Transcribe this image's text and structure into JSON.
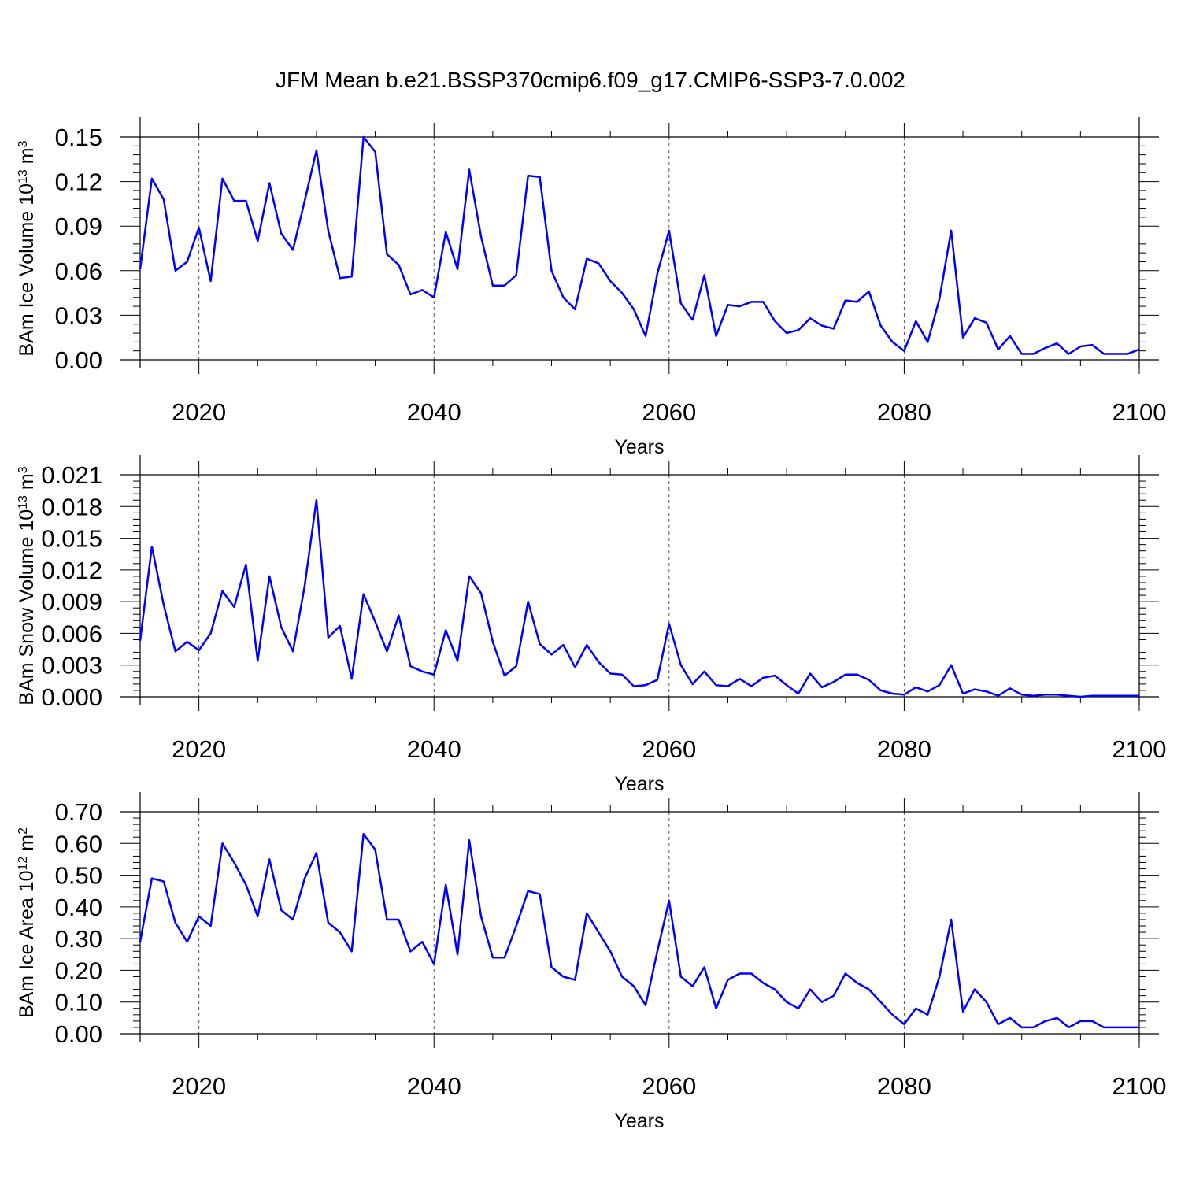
{
  "figure": {
    "title": "JFM Mean b.e21.BSSP370cmip6.f09_g17.CMIP6-SSP3-7.0.002"
  },
  "chart_data": [
    {
      "type": "line",
      "ylabel_main": "BAm Ice Volume 10",
      "ylabel_exp": "13",
      "ylabel_unit": " m",
      "ylabel_unit_exp": "3",
      "xlabel": "Years",
      "xlim": [
        2015,
        2100
      ],
      "ylim": [
        0,
        0.15
      ],
      "yticks": [
        0,
        0.03,
        0.06,
        0.09,
        0.12,
        0.15
      ],
      "ytick_labels": [
        "0.00",
        "0.03",
        "0.06",
        "0.09",
        "0.12",
        "0.15"
      ],
      "xticks": [
        2020,
        2040,
        2060,
        2080,
        2100
      ],
      "xtick_labels": [
        "2020",
        "2040",
        "2060",
        "2080",
        "2100"
      ],
      "grid": "vertical dashed at major x ticks",
      "line_color": "#0000ff",
      "x": [
        2015,
        2016,
        2017,
        2018,
        2019,
        2020,
        2021,
        2022,
        2023,
        2024,
        2025,
        2026,
        2027,
        2028,
        2029,
        2030,
        2031,
        2032,
        2033,
        2034,
        2035,
        2036,
        2037,
        2038,
        2039,
        2040,
        2041,
        2042,
        2043,
        2044,
        2045,
        2046,
        2047,
        2048,
        2049,
        2050,
        2051,
        2052,
        2053,
        2054,
        2055,
        2056,
        2057,
        2058,
        2059,
        2060,
        2061,
        2062,
        2063,
        2064,
        2065,
        2066,
        2067,
        2068,
        2069,
        2070,
        2071,
        2072,
        2073,
        2074,
        2075,
        2076,
        2077,
        2078,
        2079,
        2080,
        2081,
        2082,
        2083,
        2084,
        2085,
        2086,
        2087,
        2088,
        2089,
        2090,
        2091,
        2092,
        2093,
        2094,
        2095,
        2096,
        2097,
        2098,
        2099,
        2100
      ],
      "y": [
        0.061,
        0.122,
        0.108,
        0.06,
        0.066,
        0.089,
        0.053,
        0.122,
        0.107,
        0.107,
        0.08,
        0.119,
        0.085,
        0.074,
        0.107,
        0.141,
        0.087,
        0.055,
        0.056,
        0.15,
        0.14,
        0.071,
        0.064,
        0.044,
        0.047,
        0.042,
        0.086,
        0.061,
        0.128,
        0.083,
        0.05,
        0.05,
        0.057,
        0.124,
        0.123,
        0.06,
        0.042,
        0.034,
        0.068,
        0.065,
        0.053,
        0.045,
        0.034,
        0.016,
        0.058,
        0.087,
        0.038,
        0.027,
        0.057,
        0.016,
        0.037,
        0.036,
        0.039,
        0.039,
        0.026,
        0.018,
        0.02,
        0.028,
        0.023,
        0.021,
        0.04,
        0.039,
        0.046,
        0.023,
        0.012,
        0.006,
        0.026,
        0.012,
        0.041,
        0.087,
        0.015,
        0.028,
        0.025,
        0.007,
        0.016,
        0.004,
        0.004,
        0.008,
        0.011,
        0.004,
        0.009,
        0.01,
        0.004,
        0.004,
        0.004,
        0.007
      ]
    },
    {
      "type": "line",
      "ylabel_main": "BAm Snow Volume 10",
      "ylabel_exp": "13",
      "ylabel_unit": " m",
      "ylabel_unit_exp": "3",
      "xlabel": "Years",
      "xlim": [
        2015,
        2100
      ],
      "ylim": [
        0,
        0.021
      ],
      "yticks": [
        0,
        0.003,
        0.006,
        0.009,
        0.012,
        0.015,
        0.018,
        0.021
      ],
      "ytick_labels": [
        "0.000",
        "0.003",
        "0.006",
        "0.009",
        "0.012",
        "0.015",
        "0.018",
        "0.021"
      ],
      "xticks": [
        2020,
        2040,
        2060,
        2080,
        2100
      ],
      "xtick_labels": [
        "2020",
        "2040",
        "2060",
        "2080",
        "2100"
      ],
      "grid": "vertical dashed at major x ticks",
      "line_color": "#0000ff",
      "x": [
        2015,
        2016,
        2017,
        2018,
        2019,
        2020,
        2021,
        2022,
        2023,
        2024,
        2025,
        2026,
        2027,
        2028,
        2029,
        2030,
        2031,
        2032,
        2033,
        2034,
        2035,
        2036,
        2037,
        2038,
        2039,
        2040,
        2041,
        2042,
        2043,
        2044,
        2045,
        2046,
        2047,
        2048,
        2049,
        2050,
        2051,
        2052,
        2053,
        2054,
        2055,
        2056,
        2057,
        2058,
        2059,
        2060,
        2061,
        2062,
        2063,
        2064,
        2065,
        2066,
        2067,
        2068,
        2069,
        2070,
        2071,
        2072,
        2073,
        2074,
        2075,
        2076,
        2077,
        2078,
        2079,
        2080,
        2081,
        2082,
        2083,
        2084,
        2085,
        2086,
        2087,
        2088,
        2089,
        2090,
        2091,
        2092,
        2093,
        2094,
        2095,
        2096,
        2097,
        2098,
        2099,
        2100
      ],
      "y": [
        0.0053,
        0.0142,
        0.0087,
        0.0043,
        0.0052,
        0.0044,
        0.006,
        0.01,
        0.0085,
        0.0125,
        0.0034,
        0.0114,
        0.0066,
        0.0043,
        0.0105,
        0.0186,
        0.0056,
        0.0067,
        0.0017,
        0.0097,
        0.0071,
        0.0043,
        0.0077,
        0.0029,
        0.0024,
        0.0021,
        0.0063,
        0.0034,
        0.0114,
        0.0098,
        0.0052,
        0.002,
        0.0029,
        0.009,
        0.005,
        0.004,
        0.0049,
        0.0028,
        0.0049,
        0.0033,
        0.0022,
        0.0021,
        0.001,
        0.0011,
        0.0016,
        0.0069,
        0.003,
        0.0012,
        0.0024,
        0.0011,
        0.001,
        0.0017,
        0.001,
        0.0018,
        0.002,
        0.0011,
        0.0003,
        0.0022,
        0.0009,
        0.0014,
        0.0021,
        0.0021,
        0.0016,
        0.0006,
        0.0003,
        0.0002,
        0.0009,
        0.0005,
        0.0011,
        0.003,
        0.0003,
        0.0007,
        0.0005,
        0.0001,
        0.0008,
        0.0002,
        0.0001,
        0.0002,
        0.0002,
        0.0001,
        0.0,
        0.0001,
        0.0001,
        0.0001,
        0.0001,
        0.0001
      ]
    },
    {
      "type": "line",
      "ylabel_main": "BAm Ice Area 10",
      "ylabel_exp": "12",
      "ylabel_unit": " m",
      "ylabel_unit_exp": "2",
      "xlabel": "Years",
      "xlim": [
        2015,
        2100
      ],
      "ylim": [
        0,
        0.7
      ],
      "yticks": [
        0,
        0.1,
        0.2,
        0.3,
        0.4,
        0.5,
        0.6,
        0.7
      ],
      "ytick_labels": [
        "0.00",
        "0.10",
        "0.20",
        "0.30",
        "0.40",
        "0.50",
        "0.60",
        "0.70"
      ],
      "xticks": [
        2020,
        2040,
        2060,
        2080,
        2100
      ],
      "xtick_labels": [
        "2020",
        "2040",
        "2060",
        "2080",
        "2100"
      ],
      "grid": "vertical dashed at major x ticks",
      "line_color": "#0000ff",
      "x": [
        2015,
        2016,
        2017,
        2018,
        2019,
        2020,
        2021,
        2022,
        2023,
        2024,
        2025,
        2026,
        2027,
        2028,
        2029,
        2030,
        2031,
        2032,
        2033,
        2034,
        2035,
        2036,
        2037,
        2038,
        2039,
        2040,
        2041,
        2042,
        2043,
        2044,
        2045,
        2046,
        2047,
        2048,
        2049,
        2050,
        2051,
        2052,
        2053,
        2054,
        2055,
        2056,
        2057,
        2058,
        2059,
        2060,
        2061,
        2062,
        2063,
        2064,
        2065,
        2066,
        2067,
        2068,
        2069,
        2070,
        2071,
        2072,
        2073,
        2074,
        2075,
        2076,
        2077,
        2078,
        2079,
        2080,
        2081,
        2082,
        2083,
        2084,
        2085,
        2086,
        2087,
        2088,
        2089,
        2090,
        2091,
        2092,
        2093,
        2094,
        2095,
        2096,
        2097,
        2098,
        2099,
        2100
      ],
      "y": [
        0.29,
        0.49,
        0.48,
        0.35,
        0.29,
        0.37,
        0.34,
        0.6,
        0.54,
        0.47,
        0.37,
        0.55,
        0.39,
        0.36,
        0.49,
        0.57,
        0.35,
        0.32,
        0.26,
        0.63,
        0.58,
        0.36,
        0.36,
        0.26,
        0.29,
        0.22,
        0.47,
        0.25,
        0.61,
        0.37,
        0.24,
        0.24,
        0.34,
        0.45,
        0.44,
        0.21,
        0.18,
        0.17,
        0.38,
        0.32,
        0.26,
        0.18,
        0.15,
        0.09,
        0.26,
        0.42,
        0.18,
        0.15,
        0.21,
        0.08,
        0.17,
        0.19,
        0.19,
        0.16,
        0.14,
        0.1,
        0.08,
        0.14,
        0.1,
        0.12,
        0.19,
        0.16,
        0.14,
        0.1,
        0.06,
        0.03,
        0.08,
        0.06,
        0.18,
        0.36,
        0.07,
        0.14,
        0.1,
        0.03,
        0.05,
        0.02,
        0.02,
        0.04,
        0.05,
        0.02,
        0.04,
        0.04,
        0.02,
        0.02,
        0.02,
        0.02
      ]
    }
  ]
}
